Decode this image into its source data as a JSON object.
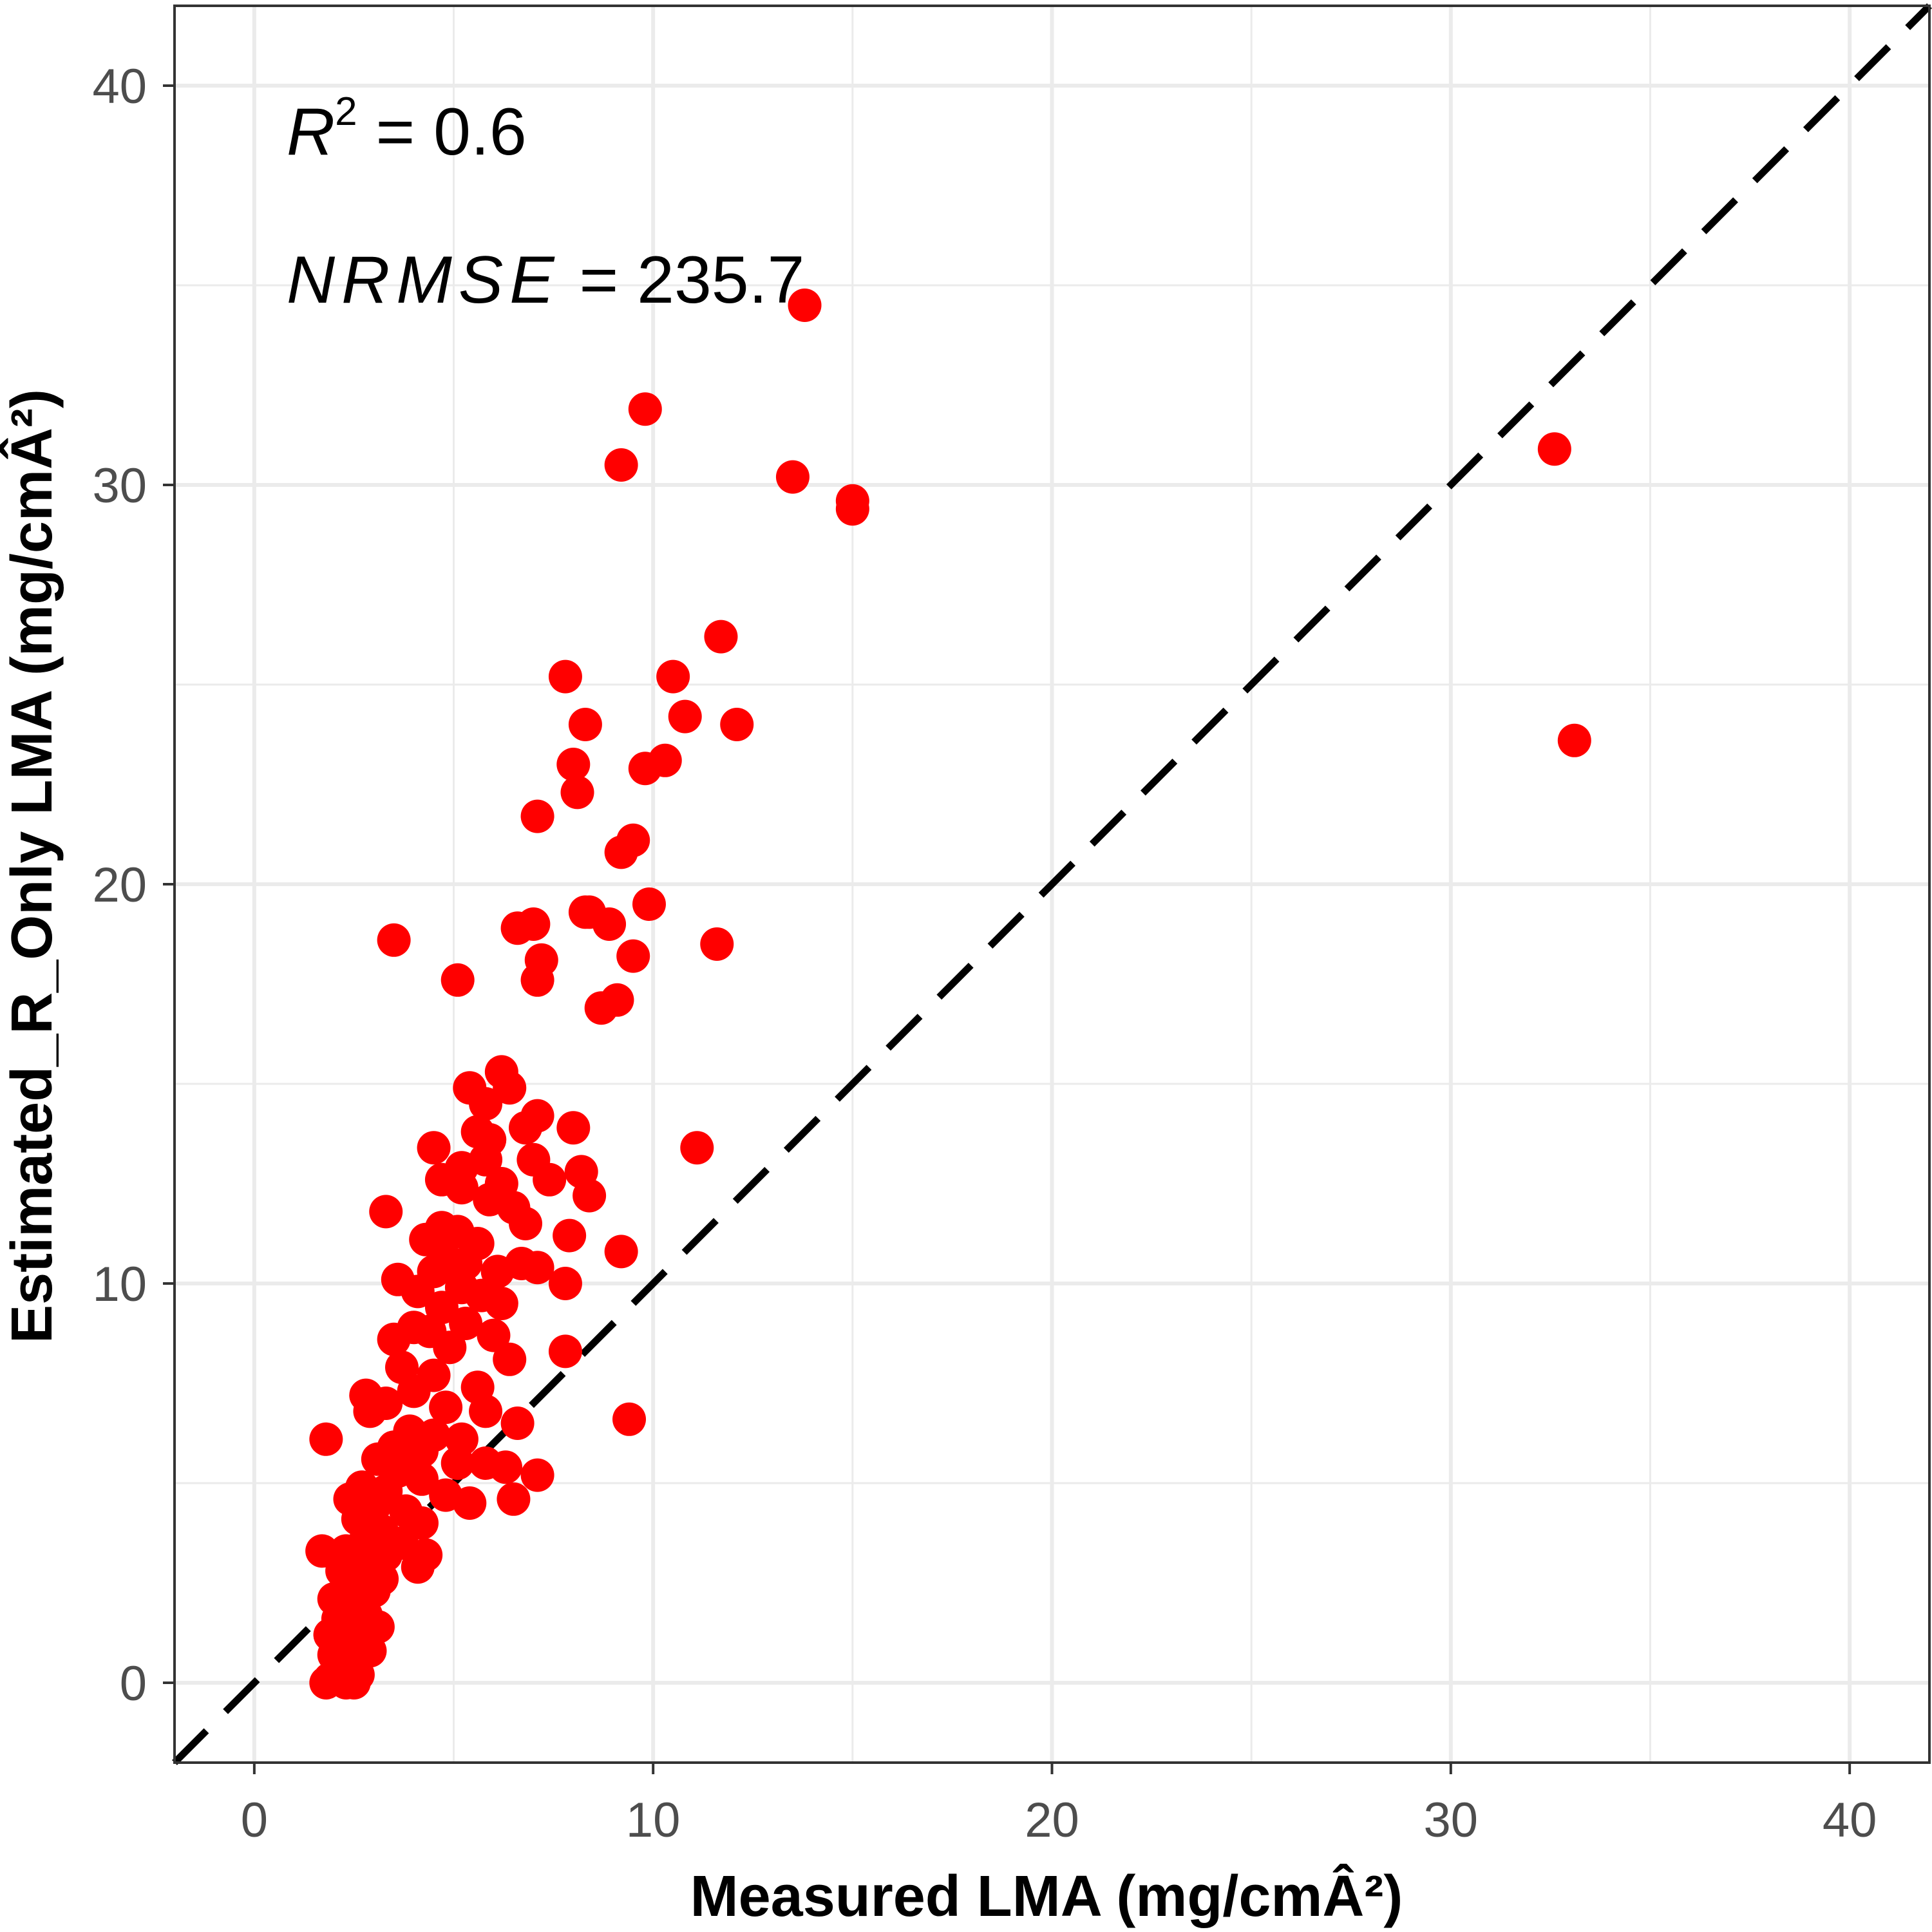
{
  "colors": {
    "point": "#ff0000",
    "grid": "#ebebeb",
    "panel_border": "#333333",
    "identity_line": "#000000"
  },
  "chart_data": {
    "type": "scatter",
    "xlabel": "Measured LMA (mg/cmÂ²)",
    "ylabel": "Estimated_R_Only LMA (mg/cmÂ²)",
    "xlim": [
      -2,
      42
    ],
    "ylim": [
      -2,
      42
    ],
    "x_ticks": [
      0,
      10,
      20,
      30,
      40
    ],
    "y_ticks": [
      0,
      10,
      20,
      30,
      40
    ],
    "grid": true,
    "reference_line": {
      "type": "identity",
      "style": "dashed"
    },
    "annotations": [
      {
        "symbol": "R",
        "superscript": "2",
        "text": " = 0.6"
      },
      {
        "symbol": "NRMSE",
        "text": " = 235.7"
      }
    ],
    "series": [
      {
        "points": [
          [
            13.8,
            34.5
          ],
          [
            9.8,
            31.9
          ],
          [
            9.2,
            30.5
          ],
          [
            13.5,
            30.2
          ],
          [
            15.0,
            29.6
          ],
          [
            15.0,
            29.4
          ],
          [
            32.6,
            30.9
          ],
          [
            33.1,
            23.6
          ],
          [
            11.7,
            26.2
          ],
          [
            12.1,
            24.0
          ],
          [
            10.5,
            25.2
          ],
          [
            10.8,
            24.2
          ],
          [
            7.8,
            25.2
          ],
          [
            8.3,
            24.0
          ],
          [
            8.0,
            23.0
          ],
          [
            8.1,
            22.3
          ],
          [
            9.8,
            22.9
          ],
          [
            10.3,
            23.1
          ],
          [
            7.1,
            21.7
          ],
          [
            9.5,
            21.1
          ],
          [
            9.2,
            20.8
          ],
          [
            9.9,
            19.5
          ],
          [
            8.3,
            19.3
          ],
          [
            8.4,
            19.3
          ],
          [
            8.9,
            19.0
          ],
          [
            6.6,
            18.9
          ],
          [
            7.0,
            19.0
          ],
          [
            11.6,
            18.5
          ],
          [
            3.5,
            18.6
          ],
          [
            9.5,
            18.2
          ],
          [
            7.2,
            18.1
          ],
          [
            7.1,
            17.6
          ],
          [
            5.1,
            17.6
          ],
          [
            8.7,
            16.9
          ],
          [
            9.1,
            17.1
          ],
          [
            6.2,
            15.3
          ],
          [
            5.4,
            14.9
          ],
          [
            6.4,
            14.9
          ],
          [
            5.8,
            14.5
          ],
          [
            7.1,
            14.2
          ],
          [
            8.0,
            13.9
          ],
          [
            6.8,
            13.9
          ],
          [
            5.6,
            13.8
          ],
          [
            5.9,
            13.6
          ],
          [
            11.1,
            13.4
          ],
          [
            4.5,
            13.4
          ],
          [
            7.0,
            13.1
          ],
          [
            5.8,
            13.1
          ],
          [
            5.2,
            12.9
          ],
          [
            8.2,
            12.8
          ],
          [
            4.7,
            12.6
          ],
          [
            7.4,
            12.6
          ],
          [
            6.2,
            12.5
          ],
          [
            5.2,
            12.4
          ],
          [
            8.4,
            12.2
          ],
          [
            5.9,
            12.1
          ],
          [
            6.5,
            11.9
          ],
          [
            3.3,
            11.8
          ],
          [
            6.8,
            11.5
          ],
          [
            4.7,
            11.4
          ],
          [
            5.1,
            11.3
          ],
          [
            7.9,
            11.2
          ],
          [
            5.6,
            11.0
          ],
          [
            4.3,
            11.1
          ],
          [
            9.2,
            10.8
          ],
          [
            4.8,
            10.6
          ],
          [
            5.3,
            10.5
          ],
          [
            6.7,
            10.5
          ],
          [
            7.1,
            10.4
          ],
          [
            6.1,
            10.3
          ],
          [
            4.5,
            10.3
          ],
          [
            3.6,
            10.1
          ],
          [
            7.8,
            10.0
          ],
          [
            5.2,
            9.9
          ],
          [
            4.1,
            9.8
          ],
          [
            5.7,
            9.7
          ],
          [
            6.2,
            9.5
          ],
          [
            4.7,
            9.4
          ],
          [
            3.5,
            8.6
          ],
          [
            4.4,
            8.8
          ],
          [
            4.0,
            8.9
          ],
          [
            5.3,
            9.0
          ],
          [
            6.0,
            8.7
          ],
          [
            4.9,
            8.4
          ],
          [
            7.8,
            8.3
          ],
          [
            6.4,
            8.1
          ],
          [
            3.7,
            7.9
          ],
          [
            4.5,
            7.7
          ],
          [
            5.6,
            7.4
          ],
          [
            4.0,
            7.3
          ],
          [
            2.8,
            7.2
          ],
          [
            3.3,
            7.0
          ],
          [
            4.8,
            6.9
          ],
          [
            5.8,
            6.8
          ],
          [
            2.9,
            6.8
          ],
          [
            6.6,
            6.5
          ],
          [
            9.4,
            6.6
          ],
          [
            3.9,
            6.3
          ],
          [
            4.5,
            6.2
          ],
          [
            5.2,
            6.1
          ],
          [
            1.8,
            6.1
          ],
          [
            3.5,
            5.9
          ],
          [
            4.2,
            5.8
          ],
          [
            3.1,
            5.6
          ],
          [
            5.1,
            5.5
          ],
          [
            5.8,
            5.5
          ],
          [
            6.3,
            5.4
          ],
          [
            7.1,
            5.2
          ],
          [
            3.6,
            5.3
          ],
          [
            4.2,
            5.1
          ],
          [
            2.7,
            4.9
          ],
          [
            3.3,
            4.8
          ],
          [
            2.4,
            4.6
          ],
          [
            4.8,
            4.7
          ],
          [
            5.4,
            4.5
          ],
          [
            6.5,
            4.6
          ],
          [
            3.0,
            4.4
          ],
          [
            3.8,
            4.3
          ],
          [
            2.6,
            4.1
          ],
          [
            4.2,
            4.0
          ],
          [
            3.2,
            3.8
          ],
          [
            2.8,
            3.6
          ],
          [
            3.7,
            3.5
          ],
          [
            2.3,
            3.3
          ],
          [
            1.7,
            3.3
          ],
          [
            3.3,
            3.2
          ],
          [
            4.3,
            3.2
          ],
          [
            4.1,
            2.9
          ],
          [
            2.7,
            3.0
          ],
          [
            2.2,
            2.8
          ],
          [
            3.2,
            2.6
          ],
          [
            2.5,
            2.4
          ],
          [
            3.0,
            2.3
          ],
          [
            2.0,
            2.1
          ],
          [
            2.6,
            2.0
          ],
          [
            2.3,
            1.9
          ],
          [
            2.8,
            1.7
          ],
          [
            2.1,
            1.6
          ],
          [
            3.1,
            1.4
          ],
          [
            2.4,
            1.3
          ],
          [
            1.9,
            1.2
          ],
          [
            2.7,
            1.1
          ],
          [
            2.2,
            0.9
          ],
          [
            2.9,
            0.8
          ],
          [
            2.0,
            0.7
          ],
          [
            2.5,
            0.5
          ],
          [
            2.1,
            0.3
          ],
          [
            2.6,
            0.2
          ],
          [
            1.9,
            0.1
          ],
          [
            2.3,
            0.0
          ],
          [
            2.5,
            0.0
          ],
          [
            1.8,
            0.0
          ]
        ]
      }
    ]
  }
}
